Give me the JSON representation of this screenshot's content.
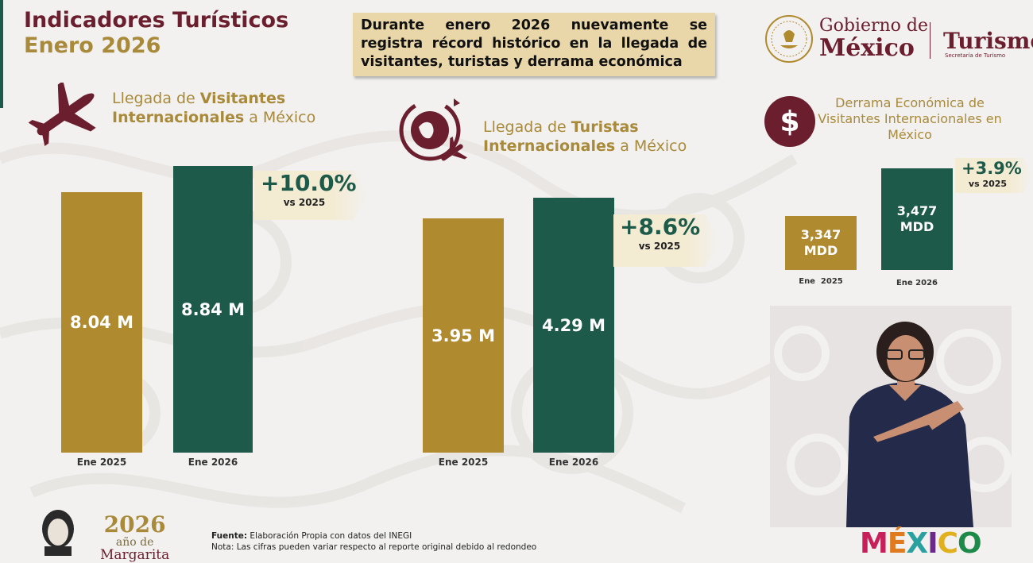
{
  "header": {
    "title_line1": "Indicadores Turísticos",
    "title_line2": "Enero 2026",
    "headline": "Durante enero 2026 nuevamente se registra récord histórico en la llegada de visitantes, turistas y derrama económica"
  },
  "branding": {
    "gobierno_line1": "Gobierno de",
    "gobierno_line2": "México",
    "turismo": "Turismo",
    "turismo_sub": "Secretaría de Turismo",
    "year_badge": {
      "year": "2026",
      "sub": "año de",
      "name": "Margarita"
    },
    "mexico_logo": "MÉXICO"
  },
  "colors": {
    "guinda": "#6b1e2e",
    "gold": "#b08a2e",
    "green": "#1e5a4a",
    "callout": "#e9d7aa"
  },
  "kpis": [
    {
      "icon": "airplane-icon",
      "title_pre": "Llegada de ",
      "title_bold": "Visitantes Internacionales",
      "title_post": " a México",
      "change": "+10.0%",
      "change_sub": "vs 2025"
    },
    {
      "icon": "globe-plane-icon",
      "title_pre": "Llegada de ",
      "title_bold": "Turistas Internacionales",
      "title_post": " a México",
      "change": "+8.6%",
      "change_sub": "vs 2025"
    },
    {
      "icon": "dollar-icon",
      "title": "Derrama Económica de Visitantes Internacionales en México",
      "change": "+3.9%",
      "change_sub": "vs 2025"
    }
  ],
  "chart_data": [
    {
      "type": "bar",
      "categories": [
        "Ene 2025",
        "Ene 2026"
      ],
      "values": [
        8.04,
        8.84
      ],
      "value_labels": [
        "8.04 M",
        "8.84 M"
      ],
      "title": "Llegada de Visitantes Internacionales a México",
      "annotation": "+10.0% vs 2025",
      "colors": [
        "#b08a2e",
        "#1e5a4a"
      ]
    },
    {
      "type": "bar",
      "categories": [
        "Ene 2025",
        "Ene 2026"
      ],
      "values": [
        3.95,
        4.29
      ],
      "value_labels": [
        "3.95 M",
        "4.29 M"
      ],
      "title": "Llegada de Turistas Internacionales a México",
      "annotation": "+8.6% vs 2025",
      "colors": [
        "#b08a2e",
        "#1e5a4a"
      ]
    },
    {
      "type": "bar",
      "categories": [
        "Ene  2025",
        "Ene 2026"
      ],
      "values": [
        3347,
        3477
      ],
      "value_labels": [
        "3,347\nMDD",
        "3,477\nMDD"
      ],
      "title": "Derrama Económica de Visitantes Internacionales en México",
      "annotation": "+3.9% vs 2025",
      "colors": [
        "#b08a2e",
        "#1e5a4a"
      ]
    }
  ],
  "footer": {
    "fuente_label": "Fuente:",
    "fuente_text": " Elaboración Propia con datos del INEGI",
    "nota": "Nota: Las cifras pueden variar respecto al reporte original debido al redondeo"
  }
}
